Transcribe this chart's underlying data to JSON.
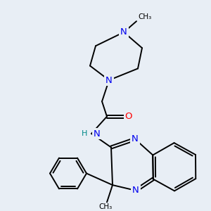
{
  "bg_color": "#e8eef5",
  "atom_colors": {
    "N": "#0000ee",
    "O": "#ff0000",
    "H": "#008888",
    "C": "#000000"
  },
  "lw": 1.4,
  "fs": 9.5
}
